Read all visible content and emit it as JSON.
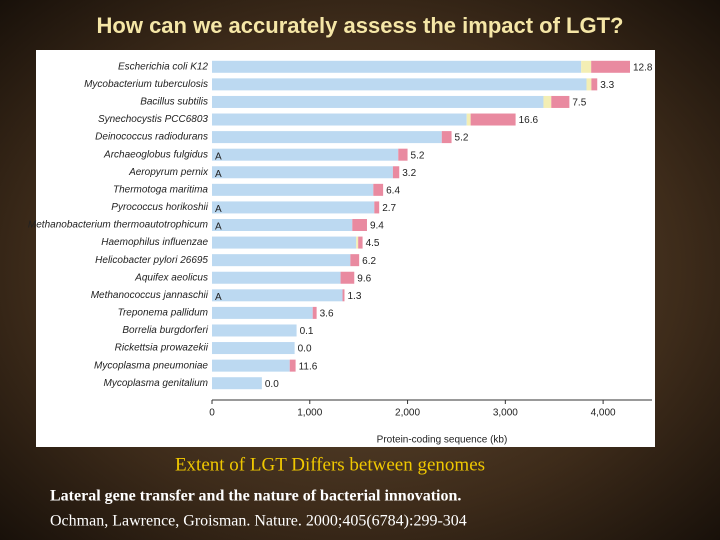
{
  "header": {
    "title": "How can we accurately assess  the impact of LGT?"
  },
  "chart_data": {
    "type": "bar",
    "orientation": "horizontal",
    "stacked": true,
    "categories": [
      "Escherichia coli K12",
      "Mycobacterium tuberculosis",
      "Bacillus subtilis",
      "Synechocystis PCC6803",
      "Deinococcus radiodurans",
      "Archaeoglobus fulgidus",
      "Aeropyrum pernix",
      "Thermotoga maritima",
      "Pyrococcus horikoshii",
      "Methanobacterium thermoautotrophicum",
      "Haemophilus influenzae",
      "Helicobacter pylori 26695",
      "Aquifex aeolicus",
      "Methanococcus jannaschii",
      "Treponema pallidum",
      "Borrelia burgdorferi",
      "Rickettsia prowazekii",
      "Mycoplasma pneumoniae",
      "Mycoplasma genitalium"
    ],
    "series": [
      {
        "color": "#bcd9f1",
        "values": [
          3776,
          3830,
          3390,
          2605,
          2350,
          1905,
          1850,
          1650,
          1660,
          1435,
          1475,
          1415,
          1315,
          1335,
          1030,
          865,
          845,
          795,
          510
        ]
      },
      {
        "color": "#f3eeb4",
        "values": [
          102,
          50,
          80,
          40,
          0,
          0,
          0,
          0,
          0,
          0,
          20,
          0,
          0,
          0,
          0,
          0,
          0,
          0,
          0
        ]
      },
      {
        "color": "#e98aa0",
        "values": [
          397,
          60,
          185,
          460,
          100,
          95,
          65,
          100,
          50,
          150,
          45,
          90,
          140,
          20,
          40,
          0,
          0,
          60,
          0
        ]
      }
    ],
    "lgt_labels": [
      "12.8",
      "3.3",
      "7.5",
      "16.6",
      "5.2",
      "5.2",
      "3.2",
      "6.4",
      "2.7",
      "9.4",
      "4.5",
      "6.2",
      "9.6",
      "1.3",
      "3.6",
      "0.1",
      "0.0",
      "11.6",
      "0.0"
    ],
    "marker_label": "A",
    "marked": [
      false,
      false,
      false,
      false,
      false,
      true,
      true,
      false,
      true,
      true,
      false,
      false,
      false,
      true,
      false,
      false,
      false,
      false,
      false
    ],
    "xlim": [
      0,
      4500
    ],
    "xticks": [
      0,
      {
        "value": 1000,
        "label": "1,000"
      },
      {
        "value": 2000,
        "label": "2,000"
      },
      {
        "value": 3000,
        "label": "3,000"
      },
      {
        "value": 4000,
        "label": "4,000"
      }
    ],
    "xlabel": "Protein-coding sequence (kb)"
  },
  "caption": "Extent of LGT Differs between genomes",
  "reference": {
    "title": "Lateral gene transfer and the nature of bacterial innovation.",
    "citation": "Ochman, Lawrence, Groisman. Nature. 2000;405(6784):299-304"
  }
}
